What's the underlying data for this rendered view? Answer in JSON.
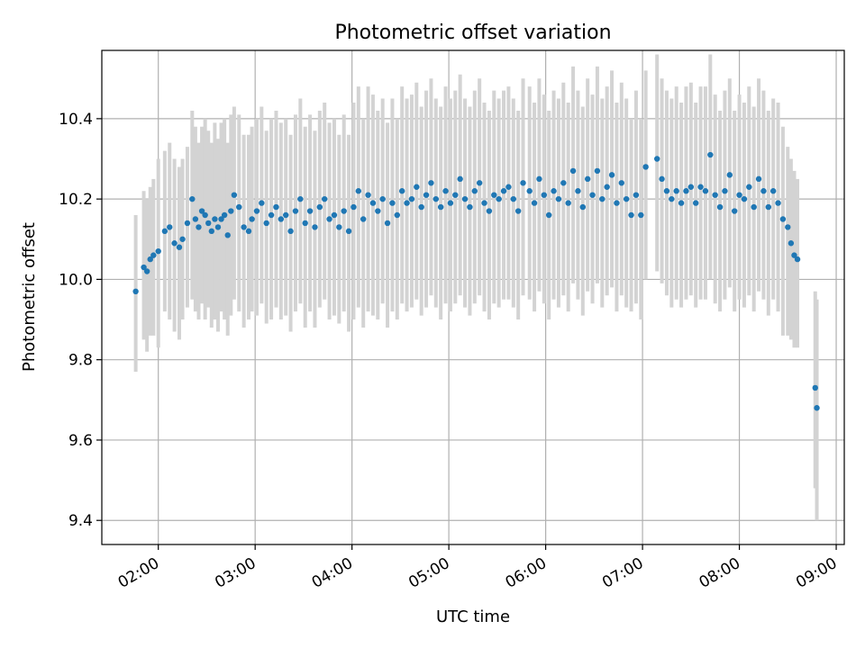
{
  "chart_data": {
    "type": "scatter",
    "title": "Photometric offset variation",
    "xlabel": "UTC time",
    "ylabel": "Photometric offset",
    "x_ticks": [
      "02:00",
      "03:00",
      "04:00",
      "05:00",
      "06:00",
      "07:00",
      "08:00",
      "09:00"
    ],
    "y_ticks": [
      9.4,
      9.6,
      9.8,
      10.0,
      10.2,
      10.4
    ],
    "xlim": [
      "01:25",
      "09:05"
    ],
    "ylim": [
      9.34,
      10.57
    ],
    "grid": true,
    "colors": {
      "points": "#1f77b4",
      "errorbars": "#d3d3d3"
    },
    "series": [
      {
        "x": [
          "01:46",
          "01:51",
          "01:53",
          "01:55",
          "01:57",
          "02:00",
          "02:04",
          "02:07",
          "02:10",
          "02:13",
          "02:15",
          "02:18",
          "02:21",
          "02:23",
          "02:25",
          "02:27",
          "02:29",
          "02:31",
          "02:33",
          "02:35",
          "02:37",
          "02:39",
          "02:41",
          "02:43",
          "02:45",
          "02:47",
          "02:50",
          "02:53",
          "02:56",
          "02:58",
          "03:01",
          "03:04",
          "03:07",
          "03:10",
          "03:13",
          "03:16",
          "03:19",
          "03:22",
          "03:25",
          "03:28",
          "03:31",
          "03:34",
          "03:37",
          "03:40",
          "03:43",
          "03:46",
          "03:49",
          "03:52",
          "03:55",
          "03:58",
          "04:01",
          "04:04",
          "04:07",
          "04:10",
          "04:13",
          "04:16",
          "04:19",
          "04:22",
          "04:25",
          "04:28",
          "04:31",
          "04:34",
          "04:37",
          "04:40",
          "04:43",
          "04:46",
          "04:49",
          "04:52",
          "04:55",
          "04:58",
          "05:01",
          "05:04",
          "05:07",
          "05:10",
          "05:13",
          "05:16",
          "05:19",
          "05:22",
          "05:25",
          "05:28",
          "05:31",
          "05:34",
          "05:37",
          "05:40",
          "05:43",
          "05:46",
          "05:50",
          "05:53",
          "05:56",
          "05:59",
          "06:02",
          "06:05",
          "06:08",
          "06:11",
          "06:14",
          "06:17",
          "06:20",
          "06:23",
          "06:26",
          "06:29",
          "06:32",
          "06:35",
          "06:38",
          "06:41",
          "06:44",
          "06:47",
          "06:50",
          "06:53",
          "06:56",
          "06:59",
          "07:02",
          "07:09",
          "07:12",
          "07:15",
          "07:18",
          "07:21",
          "07:24",
          "07:27",
          "07:30",
          "07:33",
          "07:36",
          "07:39",
          "07:42",
          "07:45",
          "07:48",
          "07:51",
          "07:54",
          "07:57",
          "08:00",
          "08:03",
          "08:06",
          "08:09",
          "08:12",
          "08:15",
          "08:18",
          "08:21",
          "08:24",
          "08:27",
          "08:30",
          "08:32",
          "08:34",
          "08:36",
          "08:47",
          "08:48"
        ],
        "y": [
          9.97,
          10.03,
          10.02,
          10.05,
          10.06,
          10.07,
          10.12,
          10.13,
          10.09,
          10.08,
          10.1,
          10.14,
          10.2,
          10.15,
          10.13,
          10.17,
          10.16,
          10.14,
          10.12,
          10.15,
          10.13,
          10.15,
          10.16,
          10.11,
          10.17,
          10.21,
          10.18,
          10.13,
          10.12,
          10.15,
          10.17,
          10.19,
          10.14,
          10.16,
          10.18,
          10.15,
          10.16,
          10.12,
          10.17,
          10.2,
          10.14,
          10.17,
          10.13,
          10.18,
          10.2,
          10.15,
          10.16,
          10.13,
          10.17,
          10.12,
          10.18,
          10.22,
          10.15,
          10.21,
          10.19,
          10.17,
          10.2,
          10.14,
          10.19,
          10.16,
          10.22,
          10.19,
          10.2,
          10.23,
          10.18,
          10.21,
          10.24,
          10.2,
          10.18,
          10.22,
          10.19,
          10.21,
          10.25,
          10.2,
          10.18,
          10.22,
          10.24,
          10.19,
          10.17,
          10.21,
          10.2,
          10.22,
          10.23,
          10.2,
          10.17,
          10.24,
          10.22,
          10.19,
          10.25,
          10.21,
          10.16,
          10.22,
          10.2,
          10.24,
          10.19,
          10.27,
          10.22,
          10.18,
          10.25,
          10.21,
          10.27,
          10.2,
          10.23,
          10.26,
          10.19,
          10.24,
          10.2,
          10.16,
          10.21,
          10.16,
          10.28,
          10.3,
          10.25,
          10.22,
          10.2,
          10.22,
          10.19,
          10.22,
          10.23,
          10.19,
          10.23,
          10.22,
          10.31,
          10.21,
          10.18,
          10.22,
          10.26,
          10.17,
          10.21,
          10.2,
          10.23,
          10.18,
          10.25,
          10.22,
          10.18,
          10.22,
          10.19,
          10.15,
          10.13,
          10.09,
          10.06,
          10.05,
          9.73,
          9.68
        ],
        "yerr_low": [
          9.77,
          9.85,
          9.82,
          9.86,
          9.86,
          9.83,
          9.92,
          9.9,
          9.87,
          9.85,
          9.9,
          9.93,
          9.95,
          9.92,
          9.9,
          9.94,
          9.9,
          9.93,
          9.88,
          9.9,
          9.87,
          9.92,
          9.9,
          9.86,
          9.91,
          9.95,
          9.92,
          9.88,
          9.9,
          9.92,
          9.91,
          9.94,
          9.89,
          9.9,
          9.93,
          9.9,
          9.91,
          9.87,
          9.92,
          9.94,
          9.88,
          9.92,
          9.88,
          9.93,
          9.95,
          9.9,
          9.91,
          9.89,
          9.92,
          9.87,
          9.9,
          9.93,
          9.88,
          9.92,
          9.91,
          9.9,
          9.94,
          9.88,
          9.92,
          9.9,
          9.94,
          9.92,
          9.93,
          9.95,
          9.91,
          9.93,
          9.96,
          9.93,
          9.9,
          9.94,
          9.92,
          9.94,
          9.96,
          9.93,
          9.91,
          9.94,
          9.96,
          9.92,
          9.9,
          9.94,
          9.93,
          9.95,
          9.95,
          9.93,
          9.9,
          9.96,
          9.95,
          9.92,
          9.97,
          9.94,
          9.9,
          9.95,
          9.93,
          9.96,
          9.92,
          9.99,
          9.95,
          9.91,
          9.97,
          9.94,
          9.99,
          9.93,
          9.96,
          9.98,
          9.92,
          9.96,
          9.93,
          9.92,
          9.94,
          9.9,
          10.0,
          10.02,
          9.99,
          9.96,
          9.93,
          9.95,
          9.93,
          9.95,
          9.96,
          9.93,
          9.95,
          9.95,
          10.0,
          9.94,
          9.92,
          9.95,
          9.98,
          9.92,
          9.95,
          9.93,
          9.96,
          9.92,
          9.97,
          9.95,
          9.91,
          9.95,
          9.92,
          9.86,
          9.86,
          9.85,
          9.83,
          9.83,
          9.48,
          9.4
        ],
        "yerr_high": [
          10.16,
          10.22,
          10.2,
          10.23,
          10.25,
          10.3,
          10.32,
          10.34,
          10.3,
          10.28,
          10.3,
          10.33,
          10.42,
          10.38,
          10.34,
          10.38,
          10.4,
          10.37,
          10.34,
          10.39,
          10.35,
          10.39,
          10.4,
          10.34,
          10.41,
          10.43,
          10.41,
          10.36,
          10.36,
          10.38,
          10.4,
          10.43,
          10.37,
          10.4,
          10.42,
          10.39,
          10.4,
          10.36,
          10.41,
          10.45,
          10.38,
          10.41,
          10.37,
          10.42,
          10.44,
          10.39,
          10.4,
          10.36,
          10.41,
          10.36,
          10.44,
          10.48,
          10.4,
          10.48,
          10.46,
          10.42,
          10.45,
          10.39,
          10.45,
          10.4,
          10.48,
          10.45,
          10.46,
          10.49,
          10.43,
          10.47,
          10.5,
          10.45,
          10.43,
          10.48,
          10.45,
          10.47,
          10.51,
          10.45,
          10.43,
          10.47,
          10.5,
          10.44,
          10.42,
          10.47,
          10.45,
          10.47,
          10.48,
          10.45,
          10.42,
          10.5,
          10.48,
          10.44,
          10.5,
          10.46,
          10.42,
          10.47,
          10.45,
          10.49,
          10.44,
          10.53,
          10.47,
          10.43,
          10.5,
          10.46,
          10.53,
          10.45,
          10.48,
          10.52,
          10.44,
          10.49,
          10.45,
          10.4,
          10.47,
          10.4,
          10.52,
          10.56,
          10.5,
          10.47,
          10.45,
          10.48,
          10.44,
          10.48,
          10.49,
          10.44,
          10.48,
          10.48,
          10.56,
          10.46,
          10.42,
          10.47,
          10.5,
          10.42,
          10.46,
          10.44,
          10.48,
          10.43,
          10.5,
          10.47,
          10.42,
          10.45,
          10.44,
          10.38,
          10.33,
          10.3,
          10.27,
          10.25,
          9.97,
          9.95
        ]
      }
    ]
  }
}
